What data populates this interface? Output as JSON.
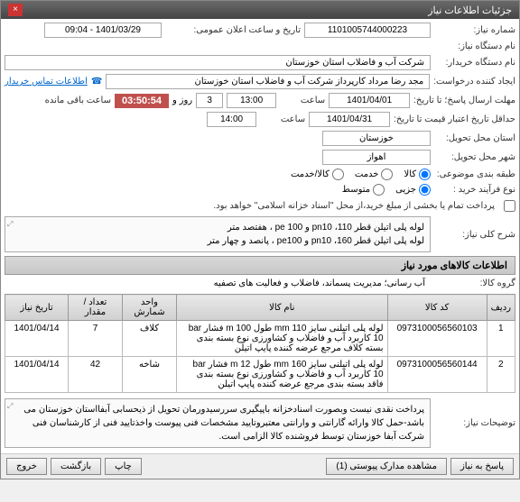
{
  "window": {
    "title": "جزئیات اطلاعات نیاز",
    "close": "×"
  },
  "fields": {
    "need_no_lbl": "شماره نیاز:",
    "need_no": "1101005744000223",
    "announce_lbl": "تاریخ و ساعت اعلان عمومی:",
    "announce": "1401/03/29 - 09:04",
    "device_lbl": "نام دستگاه نیاز:",
    "buyer_lbl": "نام دستگاه خریدار:",
    "buyer": "شرکت آب و فاضلاب استان خوزستان",
    "creator_lbl": "ایجاد کننده درخواست:",
    "creator": "مجد رضا مرداد کارپرداز شرکت آب و فاضلاب استان خوزستان",
    "contact_link": "اطلاعات تماس خریدار",
    "deadline_lbl": "مهلت ارسال پاسخ؛ تا تاریخ:",
    "deadline_date": "1401/04/01",
    "time_lbl": "ساعت",
    "deadline_time": "13:00",
    "days_lbl": "روز و",
    "days": "3",
    "timer": "03:50:54",
    "remain": "ساعت باقی مانده",
    "validity_lbl": "حداقل تاریخ اعتبار قیمت تا تاریخ:",
    "validity_date": "1401/04/31",
    "validity_time": "14:00",
    "province_lbl": "استان محل تحویل:",
    "province": "خوزستان",
    "city_lbl": "شهر محل تحویل:",
    "city": "اهواز",
    "category_lbl": "طبقه بندی موضوعی:",
    "radio_goods": "کالا",
    "radio_service": "خدمت",
    "radio_both": "کالا/خدمت",
    "process_lbl": "نوع فرآیند خرید :",
    "radio_small": "جزیی",
    "radio_medium": "متوسط",
    "note": "پرداخت تمام یا بخشی از مبلغ خرید،از محل \"اسناد خزانه اسلامی\" خواهد بود."
  },
  "summary": {
    "hdr": "شرح کلی نیاز:",
    "line1": "لوله پلی اتیلن قطر 110، pn10 و pe 100 ، هفتصد متر",
    "line2": "لوله پلی اتیلن قطر 160، pn10 و pe100 ، پانصد و چهار متر"
  },
  "items": {
    "hdr": "اطلاعات کالاهای مورد نیاز",
    "group_lbl": "گروه کالا:",
    "group": "آب رسانی؛ مدیریت پسماند، فاضلاب و فعالیت های تصفیه",
    "cols": {
      "row": "ردیف",
      "code": "کد کالا",
      "name": "نام کالا",
      "unit": "واحد شمارش",
      "qty": "تعداد / مقدار",
      "date": "تاریخ نیاز"
    },
    "rows": [
      {
        "idx": "1",
        "code": "0973100056560103",
        "name": "لوله پلی اتیلنی سایز 110 mm طول m 100 فشار bar 10 کاربرد آب و فاضلاب و کشاورزی نوع بسته بندی بسته کلاف مرجع عرضه کننده پایپ اتیلن",
        "unit": "کلاف",
        "qty": "7",
        "date": "1401/04/14"
      },
      {
        "idx": "2",
        "code": "0973100056560144",
        "name": "لوله پلی اتیلنی سایز 160 mm طول m 12 فشار bar 10 کاربرد آب و فاضلاب و کشاورزی نوع بسته بندی فاقد بسته بندی مرجع عرضه کننده پایپ اتیلن",
        "unit": "شاخه",
        "qty": "42",
        "date": "1401/04/14"
      }
    ]
  },
  "remarks": {
    "lbl": "توضیحات نیاز:",
    "text": "پرداخت نقدی نیست وبصورت اسنادخزانه باپیگیری سررسیدورمان تحویل از ذیحسابی آبفااستان خوزستان می باشد-حمل کالا وارائه گارانتی و وارانتی معتبروتایید مشخصات فنی پیوست واخذتایید فنی از کارشناسان فنی شرکت آبفا خوزستان توسط فروشنده کالا الزامی است."
  },
  "footer": {
    "reply": "پاسخ به نیاز",
    "attach": "مشاهده مدارک پیوستی  (1)",
    "print": "چاپ",
    "back": "بازگشت",
    "exit": "خروج"
  },
  "colors": {
    "timer_bg": "#c0504d",
    "link": "#0066cc"
  }
}
